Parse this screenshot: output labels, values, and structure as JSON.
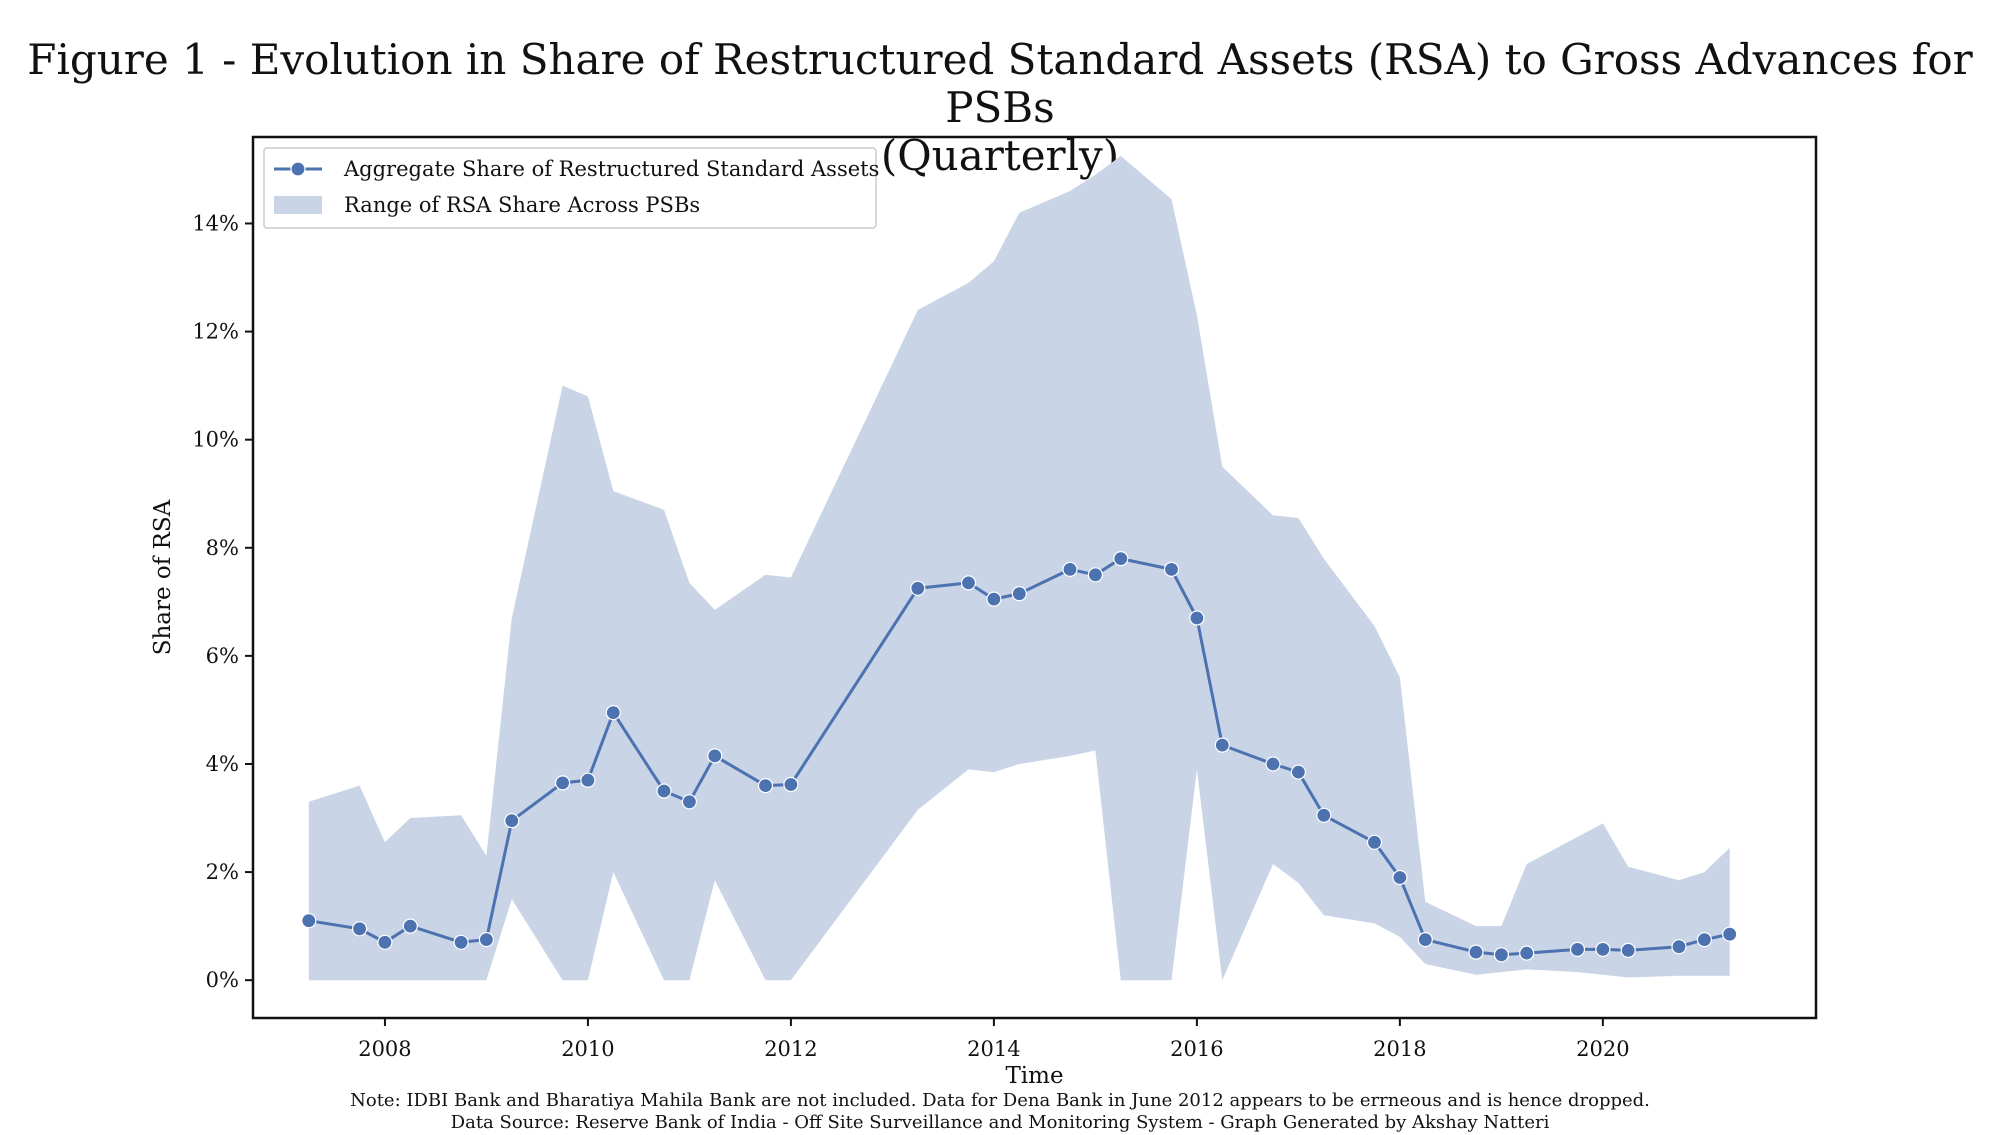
{
  "title_lines": [
    "Figure 1 - Evolution in Share of Restructured Standard Assets (RSA) to Gross Advances for PSBs",
    "(Quarterly)"
  ],
  "notes": {
    "line1": "Note: IDBI Bank and Bharatiya Mahila Bank are not included. Data for Dena Bank in June 2012 appears to be errneous and is hence dropped.",
    "line2": "Data Source: Reserve Bank of India - Off Site Surveillance and Monitoring System - Graph Generated by Akshay Natteri"
  },
  "chart_data": {
    "type": "line",
    "xlabel": "Time",
    "ylabel": "Share of RSA",
    "xlim": [
      2006.7,
      2022.1
    ],
    "ylim": [
      -0.7,
      15.6
    ],
    "x_ticks": [
      2008,
      2010,
      2012,
      2014,
      2016,
      2018,
      2020
    ],
    "x_tick_labels": [
      "2008",
      "2010",
      "2012",
      "2014",
      "2016",
      "2018",
      "2020"
    ],
    "y_ticks": [
      0,
      2,
      4,
      6,
      8,
      10,
      12,
      14
    ],
    "y_tick_labels": [
      "0%",
      "2%",
      "4%",
      "6%",
      "8%",
      "10%",
      "12%",
      "14%"
    ],
    "legend_position": "top-left",
    "series_color": "#4c72b0",
    "band_color": "#c9d4e6",
    "series": [
      {
        "name": "Aggregate Share of Restructured Standard Assets",
        "points": [
          [
            2007.25,
            1.1
          ],
          [
            2007.75,
            0.95
          ],
          [
            2008.0,
            0.7
          ],
          [
            2008.25,
            1.0
          ],
          [
            2008.75,
            0.7
          ],
          [
            2009.0,
            0.75
          ],
          [
            2009.25,
            2.95
          ],
          [
            2009.75,
            3.65
          ],
          [
            2010.0,
            3.7
          ],
          [
            2010.25,
            4.95
          ],
          [
            2010.75,
            3.5
          ],
          [
            2011.0,
            3.3
          ],
          [
            2011.25,
            4.15
          ],
          [
            2011.75,
            3.6
          ],
          [
            2012.0,
            3.62
          ],
          [
            2013.25,
            7.25
          ],
          [
            2013.75,
            7.35
          ],
          [
            2014.0,
            7.05
          ],
          [
            2014.25,
            7.15
          ],
          [
            2014.75,
            7.6
          ],
          [
            2015.0,
            7.5
          ],
          [
            2015.25,
            7.8
          ],
          [
            2015.75,
            7.6
          ],
          [
            2016.0,
            6.7
          ],
          [
            2016.25,
            4.35
          ],
          [
            2016.75,
            4.0
          ],
          [
            2017.0,
            3.85
          ],
          [
            2017.25,
            3.05
          ],
          [
            2017.75,
            2.55
          ],
          [
            2018.0,
            1.9
          ],
          [
            2018.25,
            0.75
          ],
          [
            2018.75,
            0.52
          ],
          [
            2019.0,
            0.47
          ],
          [
            2019.25,
            0.5
          ],
          [
            2019.75,
            0.57
          ],
          [
            2020.0,
            0.57
          ],
          [
            2020.25,
            0.55
          ],
          [
            2020.75,
            0.62
          ],
          [
            2021.0,
            0.75
          ],
          [
            2021.25,
            0.85
          ]
        ]
      }
    ],
    "band": {
      "name": "Range of RSA Share Across PSBs",
      "points": [
        [
          2007.25,
          0.0,
          3.3
        ],
        [
          2007.75,
          0.0,
          3.6
        ],
        [
          2008.0,
          0.0,
          2.55
        ],
        [
          2008.25,
          0.0,
          3.0
        ],
        [
          2008.75,
          0.0,
          3.05
        ],
        [
          2009.0,
          0.0,
          2.3
        ],
        [
          2009.25,
          1.5,
          6.7
        ],
        [
          2009.75,
          0.0,
          11.0
        ],
        [
          2010.0,
          0.0,
          10.8
        ],
        [
          2010.25,
          2.0,
          9.05
        ],
        [
          2010.75,
          0.0,
          8.7
        ],
        [
          2011.0,
          0.0,
          7.35
        ],
        [
          2011.25,
          1.85,
          6.85
        ],
        [
          2011.75,
          0.0,
          7.5
        ],
        [
          2012.0,
          0.0,
          7.45
        ],
        [
          2013.25,
          3.15,
          12.4
        ],
        [
          2013.75,
          3.9,
          12.9
        ],
        [
          2014.0,
          3.85,
          13.3
        ],
        [
          2014.25,
          4.0,
          14.2
        ],
        [
          2014.75,
          4.15,
          14.6
        ],
        [
          2015.0,
          4.25,
          14.9
        ],
        [
          2015.25,
          0.0,
          15.25
        ],
        [
          2015.75,
          0.0,
          14.45
        ],
        [
          2016.0,
          3.9,
          12.3
        ],
        [
          2016.25,
          0.0,
          9.5
        ],
        [
          2016.75,
          2.15,
          8.6
        ],
        [
          2017.0,
          1.8,
          8.55
        ],
        [
          2017.25,
          1.2,
          7.8
        ],
        [
          2017.75,
          1.05,
          6.55
        ],
        [
          2018.0,
          0.8,
          5.6
        ],
        [
          2018.25,
          0.3,
          1.45
        ],
        [
          2018.75,
          0.1,
          1.0
        ],
        [
          2019.0,
          0.15,
          1.0
        ],
        [
          2019.25,
          0.2,
          2.15
        ],
        [
          2019.75,
          0.15,
          2.65
        ],
        [
          2020.0,
          0.1,
          2.9
        ],
        [
          2020.25,
          0.05,
          2.1
        ],
        [
          2020.75,
          0.08,
          1.85
        ],
        [
          2021.0,
          0.08,
          2.0
        ],
        [
          2021.25,
          0.08,
          2.45
        ]
      ]
    }
  }
}
